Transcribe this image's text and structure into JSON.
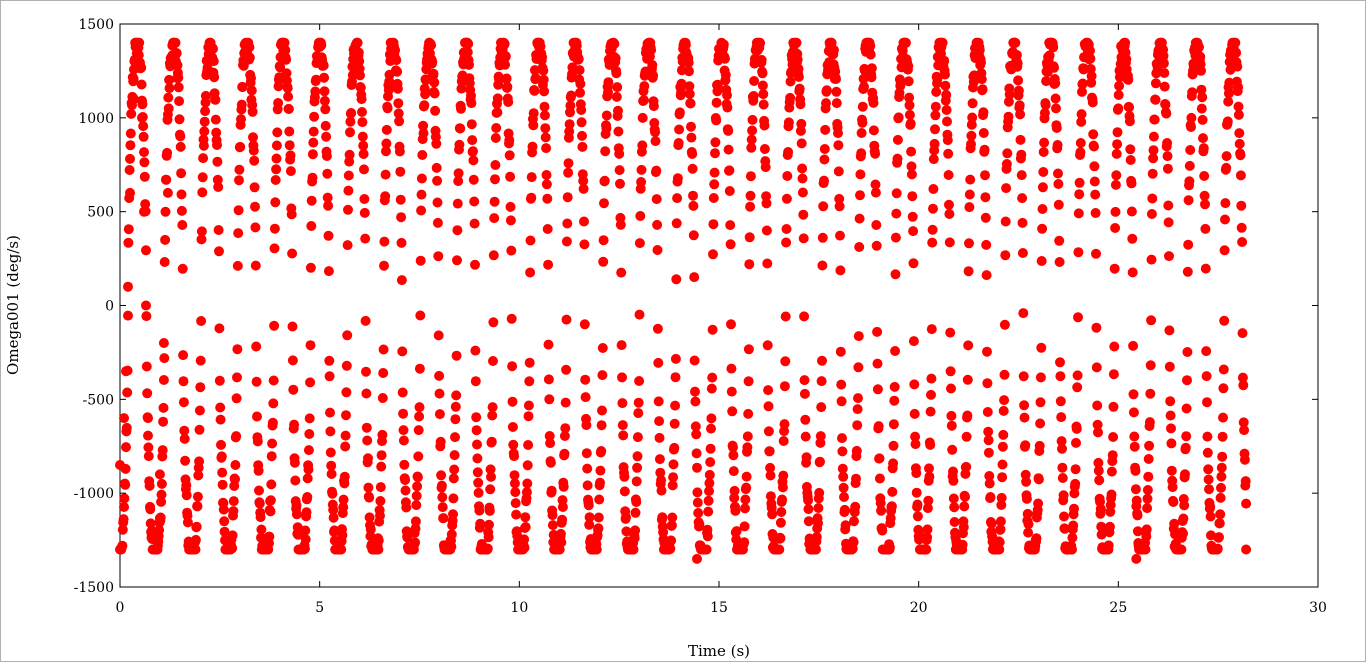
{
  "chart_data": {
    "type": "scatter",
    "title": "",
    "xlabel": "Time (s)",
    "ylabel": "Omega001 (deg/s)",
    "xlim": [
      0,
      30
    ],
    "ylim": [
      -1500,
      1500
    ],
    "xticks": [
      0,
      5,
      10,
      15,
      20,
      25,
      30
    ],
    "yticks": [
      -1500,
      -1000,
      -500,
      0,
      500,
      1000,
      1500
    ],
    "x_tick_labels": [
      "0",
      "5",
      "10",
      "15",
      "20",
      "25",
      "30"
    ],
    "y_tick_labels": [
      "-1500",
      "-1000",
      "-500",
      "0",
      "500",
      "1000",
      "1500"
    ],
    "grid": false,
    "legend": "none",
    "marker_color": "#ff0000",
    "series": [
      {
        "sampling_interval_s": 0.01,
        "x_start": 0.0,
        "x_end": 28.2,
        "approx_period_s": 0.915,
        "amplitude_deg_s": 1400,
        "sample_points": [
          {
            "x": 0.0,
            "y": -850
          },
          {
            "x": 0.1,
            "y": -600
          },
          {
            "x": 0.15,
            "y": -350
          },
          {
            "x": 0.2,
            "y": 100
          },
          {
            "x": 0.25,
            "y": 600
          },
          {
            "x": 0.35,
            "y": 1100
          },
          {
            "x": 0.45,
            "y": 1400
          },
          {
            "x": 0.55,
            "y": 1000
          },
          {
            "x": 0.6,
            "y": 500
          },
          {
            "x": 0.65,
            "y": 0
          },
          {
            "x": 0.7,
            "y": -600
          },
          {
            "x": 0.8,
            "y": -1200
          },
          {
            "x": 0.9,
            "y": -1300
          },
          {
            "x": 1.0,
            "y": -900
          },
          {
            "x": 1.1,
            "y": -200
          },
          {
            "x": 1.2,
            "y": 600
          },
          {
            "x": 1.35,
            "y": 1400
          },
          {
            "x": 14.45,
            "y": -1350
          },
          {
            "x": 25.45,
            "y": -1350
          },
          {
            "x": 28.2,
            "y": -1300
          }
        ]
      }
    ]
  }
}
